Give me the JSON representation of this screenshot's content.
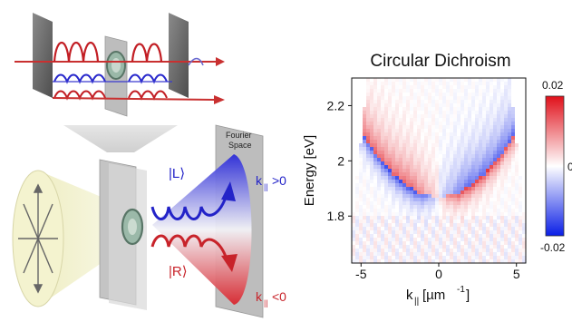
{
  "schematic": {
    "fourier_label_line1": "Fourier",
    "fourier_label_line2": "Space",
    "state_L": "|L⟩",
    "state_R": "|R⟩",
    "k_symbol": "k",
    "k_subscript": "||",
    "k_pos_condition": ">0",
    "k_neg_condition": "<0",
    "colors": {
      "left_circular": "#2a2ad6",
      "right_circular": "#d42a2a",
      "beam_cone": "#f1f0c8",
      "plate": "#6e6e6e"
    }
  },
  "chart_data": {
    "type": "heatmap",
    "title": "Circular Dichroism",
    "xlabel_main": "k",
    "xlabel_sub": "||",
    "xlabel_unit": " [µm",
    "xlabel_exp": "-1",
    "xlabel_close": "]",
    "ylabel": "Energy [eV]",
    "x_ticks": [
      -5,
      0,
      5
    ],
    "x_tick_labels": [
      "-5",
      "0",
      "5"
    ],
    "y_ticks": [
      1.8,
      2.0,
      2.2
    ],
    "y_tick_labels": [
      "1.8",
      "2",
      "2.2"
    ],
    "xlim": [
      -5.6,
      5.6
    ],
    "ylim": [
      1.63,
      2.3
    ],
    "colorbar": {
      "min": -0.02,
      "max": 0.02,
      "tick_labels": [
        "0.02",
        "0",
        "-0.02"
      ],
      "colors": [
        "#0a1ee6",
        "#ffffff",
        "#e0101a"
      ]
    },
    "dispersion": {
      "description_free": true,
      "energy_at_k0": 1.87,
      "curvature": 0.0048
    },
    "regions": [
      {
        "k_range": [
          -5.6,
          5.6
        ],
        "below_dispersion_sign_left": -1,
        "above_dispersion_sign_left": 1
      }
    ]
  }
}
